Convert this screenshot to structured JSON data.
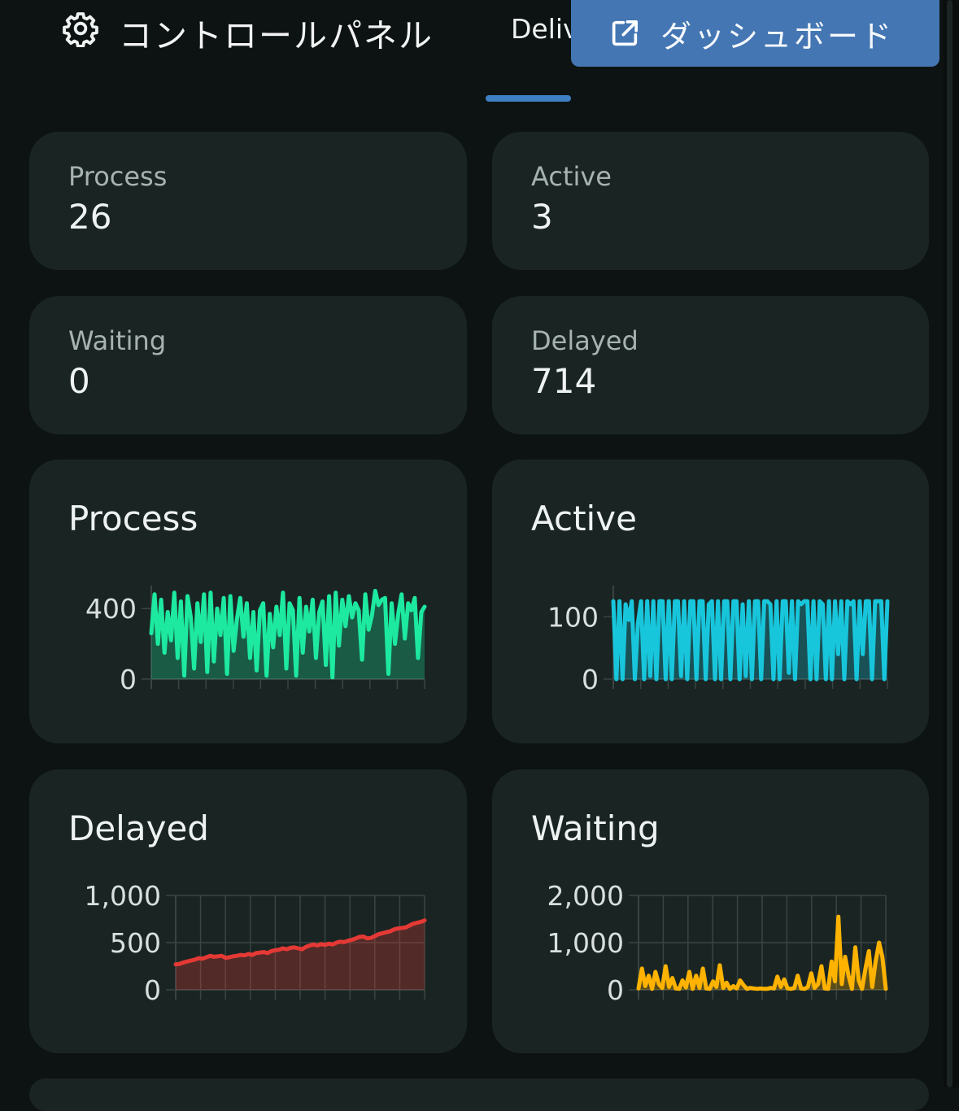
{
  "header": {
    "title": "コントロールパネル",
    "tab_label": "Deliv",
    "dashboard_button_label": "ダッシュボード",
    "gear_icon": "gear-icon",
    "external_link_icon": "external-link-icon"
  },
  "stats": {
    "process": {
      "label": "Process",
      "value": "26"
    },
    "active": {
      "label": "Active",
      "value": "3"
    },
    "waiting": {
      "label": "Waiting",
      "value": "0"
    },
    "delayed": {
      "label": "Delayed",
      "value": "714"
    }
  },
  "colors": {
    "background": "#0d1312",
    "card": "#1a2523",
    "accent": "#4476b3",
    "process": "#1de9a0",
    "active": "#18c6dc",
    "delayed": "#e53935",
    "waiting": "#ffb300"
  },
  "chart_data": [
    {
      "type": "area",
      "title": "Process",
      "color": "#1de9a0",
      "ylim": [
        0,
        530
      ],
      "yticks": [
        "400",
        "0"
      ],
      "ytick_values": [
        400,
        0
      ],
      "values": [
        260,
        480,
        200,
        450,
        150,
        380,
        220,
        490,
        120,
        440,
        20,
        470,
        350,
        60,
        430,
        210,
        480,
        40,
        490,
        100,
        400,
        250,
        460,
        30,
        470,
        160,
        340,
        460,
        240,
        430,
        120,
        380,
        50,
        390,
        430,
        20,
        370,
        180,
        410,
        250,
        490,
        60,
        430,
        390,
        20,
        460,
        150,
        410,
        270,
        450,
        120,
        380,
        440,
        80,
        470,
        10,
        490,
        190,
        450,
        300,
        470,
        350,
        430,
        390,
        110,
        480,
        280,
        360,
        500,
        420,
        450,
        460,
        30,
        430,
        200,
        370,
        480,
        230,
        430,
        390,
        460,
        120,
        380,
        410
      ]
    },
    {
      "type": "area",
      "title": "Active",
      "color": "#18c6dc",
      "ylim": [
        0,
        150
      ],
      "yticks": [
        "100",
        "0"
      ],
      "ytick_values": [
        100,
        0
      ],
      "values": [
        125,
        0,
        125,
        0,
        120,
        95,
        125,
        0,
        90,
        125,
        0,
        125,
        5,
        125,
        0,
        125,
        125,
        0,
        125,
        0,
        125,
        125,
        5,
        125,
        0,
        125,
        125,
        0,
        125,
        125,
        0,
        120,
        125,
        0,
        125,
        0,
        125,
        125,
        0,
        125,
        125,
        0,
        120,
        5,
        125,
        0,
        125,
        125,
        0,
        125,
        125,
        120,
        0,
        125,
        0,
        125,
        125,
        10,
        125,
        0,
        125,
        120,
        125,
        125,
        0,
        125,
        0,
        125,
        120,
        0,
        125,
        0,
        125,
        40,
        125,
        0,
        125,
        120,
        125,
        0,
        125,
        40,
        125,
        125,
        0,
        125,
        125,
        125,
        0,
        125
      ]
    },
    {
      "type": "area",
      "title": "Delayed",
      "color": "#e53935",
      "ylim": [
        0,
        1000
      ],
      "yticks": [
        "1,000",
        "500",
        "0"
      ],
      "ytick_values": [
        1000,
        500,
        0
      ],
      "values": [
        270,
        275,
        290,
        300,
        310,
        320,
        335,
        330,
        345,
        360,
        350,
        355,
        360,
        340,
        345,
        355,
        360,
        370,
        365,
        380,
        370,
        390,
        395,
        400,
        390,
        410,
        420,
        425,
        440,
        430,
        445,
        450,
        440,
        430,
        455,
        470,
        480,
        470,
        485,
        475,
        490,
        480,
        500,
        510,
        505,
        520,
        530,
        545,
        560,
        565,
        545,
        550,
        570,
        590,
        600,
        610,
        620,
        640,
        650,
        655,
        660,
        680,
        700,
        710,
        720,
        735
      ]
    },
    {
      "type": "area",
      "title": "Waiting",
      "color": "#ffb300",
      "ylim": [
        0,
        2000
      ],
      "yticks": [
        "2,000",
        "1,000",
        "0"
      ],
      "ytick_values": [
        2000,
        1000,
        0
      ],
      "values": [
        30,
        450,
        80,
        300,
        20,
        380,
        120,
        40,
        500,
        60,
        250,
        30,
        20,
        200,
        50,
        380,
        20,
        300,
        40,
        450,
        30,
        20,
        180,
        60,
        520,
        40,
        150,
        20,
        80,
        30,
        200,
        100,
        20,
        40,
        30,
        20,
        30,
        20,
        20,
        40,
        30,
        280,
        60,
        220,
        30,
        20,
        40,
        300,
        30,
        20,
        60,
        350,
        40,
        120,
        500,
        30,
        20,
        600,
        180,
        1550,
        120,
        700,
        300,
        20,
        900,
        200,
        20,
        450,
        820,
        60,
        600,
        1000,
        700,
        20
      ]
    }
  ]
}
